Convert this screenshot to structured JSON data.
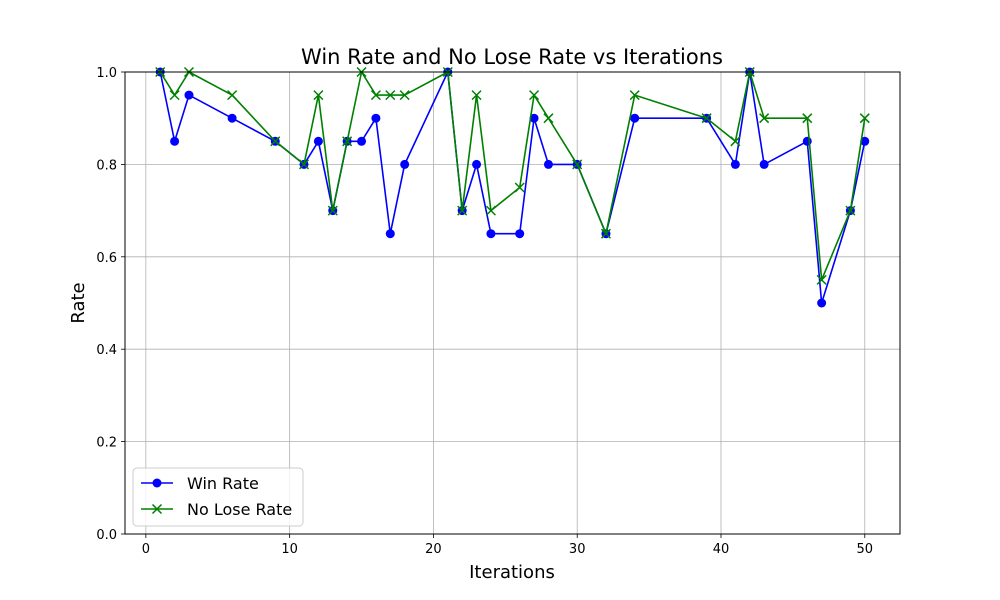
{
  "chart_data": {
    "type": "line",
    "title": "Win Rate and No Lose Rate vs Iterations",
    "xlabel": "Iterations",
    "ylabel": "Rate",
    "xlim": [
      -1.45,
      52.45
    ],
    "ylim": [
      0.0,
      1.0
    ],
    "xticks": [
      0,
      10,
      20,
      30,
      40,
      50
    ],
    "yticks": [
      0.0,
      0.2,
      0.4,
      0.6,
      0.8,
      1.0
    ],
    "ytick_labels": [
      "0.0",
      "0.2",
      "0.4",
      "0.6",
      "0.8",
      "1.0"
    ],
    "grid": true,
    "legend_position": "lower-left",
    "series": [
      {
        "name": "Win Rate",
        "color": "#0000ff",
        "marker": "circle",
        "x": [
          1,
          2,
          3,
          6,
          9,
          11,
          12,
          13,
          14,
          15,
          16,
          17,
          18,
          21,
          22,
          23,
          24,
          26,
          27,
          28,
          30,
          32,
          34,
          39,
          41,
          42,
          43,
          46,
          47,
          49,
          50
        ],
        "y": [
          1.0,
          0.85,
          0.95,
          0.9,
          0.85,
          0.8,
          0.85,
          0.7,
          0.85,
          0.85,
          0.9,
          0.65,
          0.8,
          1.0,
          0.7,
          0.8,
          0.65,
          0.65,
          0.9,
          0.8,
          0.8,
          0.65,
          0.9,
          0.9,
          0.8,
          1.0,
          0.8,
          0.85,
          0.5,
          0.7,
          0.85
        ]
      },
      {
        "name": "No Lose Rate",
        "color": "#008000",
        "marker": "x",
        "x": [
          1,
          2,
          3,
          6,
          9,
          11,
          12,
          13,
          14,
          15,
          16,
          17,
          18,
          21,
          22,
          23,
          24,
          26,
          27,
          28,
          30,
          32,
          34,
          39,
          41,
          42,
          43,
          46,
          47,
          49,
          50
        ],
        "y": [
          1.0,
          0.95,
          1.0,
          0.95,
          0.85,
          0.8,
          0.95,
          0.7,
          0.85,
          1.0,
          0.95,
          0.95,
          0.95,
          1.0,
          0.7,
          0.95,
          0.7,
          0.75,
          0.95,
          0.9,
          0.8,
          0.65,
          0.95,
          0.9,
          0.85,
          1.0,
          0.9,
          0.9,
          0.55,
          0.7,
          0.9
        ]
      }
    ]
  }
}
